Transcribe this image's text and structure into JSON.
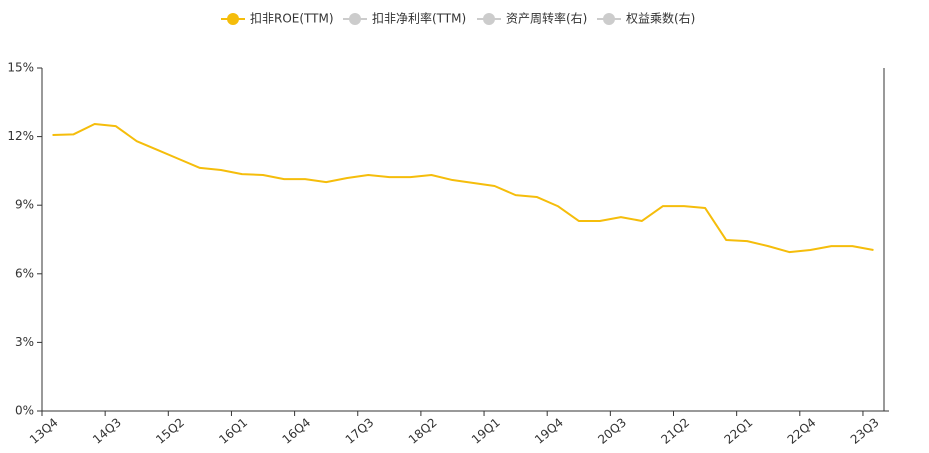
{
  "chart_data": {
    "type": "line",
    "categories": [
      "13Q4",
      null,
      null,
      "14Q3",
      null,
      null,
      "15Q2",
      null,
      null,
      "16Q1",
      null,
      null,
      "16Q4",
      null,
      null,
      "17Q3",
      null,
      null,
      "18Q2",
      null,
      null,
      "19Q1",
      null,
      null,
      "19Q4",
      null,
      null,
      "20Q3",
      null,
      null,
      "21Q2",
      null,
      null,
      "22Q1",
      null,
      null,
      "22Q4",
      null,
      null,
      "23Q3"
    ],
    "series": [
      {
        "name": "扣非ROE(TTM)",
        "color": "#f5bd0b",
        "visible": true,
        "values": [
          12.07,
          12.1,
          12.55,
          12.46,
          11.8,
          11.41,
          11.02,
          10.63,
          10.54,
          10.36,
          10.32,
          10.14,
          10.14,
          10.01,
          10.19,
          10.32,
          10.23,
          10.23,
          10.32,
          10.1,
          9.97,
          9.84,
          9.44,
          9.36,
          8.96,
          8.31,
          8.31,
          8.48,
          8.31,
          8.96,
          8.96,
          8.88,
          7.48,
          7.43,
          7.21,
          6.95,
          7.04,
          7.21,
          7.21,
          7.04
        ]
      },
      {
        "name": "扣非净利率(TTM)",
        "color": "#cccccc",
        "visible": false
      },
      {
        "name": "资产周转率(右)",
        "color": "#cccccc",
        "visible": false
      },
      {
        "name": "权益乘数(右)",
        "color": "#cccccc",
        "visible": false
      }
    ],
    "ylim": [
      0,
      15
    ],
    "yticks": [
      {
        "value": 0,
        "label": "0%"
      },
      {
        "value": 3,
        "label": "3%"
      },
      {
        "value": 6,
        "label": "6%"
      },
      {
        "value": 9,
        "label": "9%"
      },
      {
        "value": 12,
        "label": "12%"
      },
      {
        "value": 15,
        "label": "15%"
      }
    ]
  }
}
